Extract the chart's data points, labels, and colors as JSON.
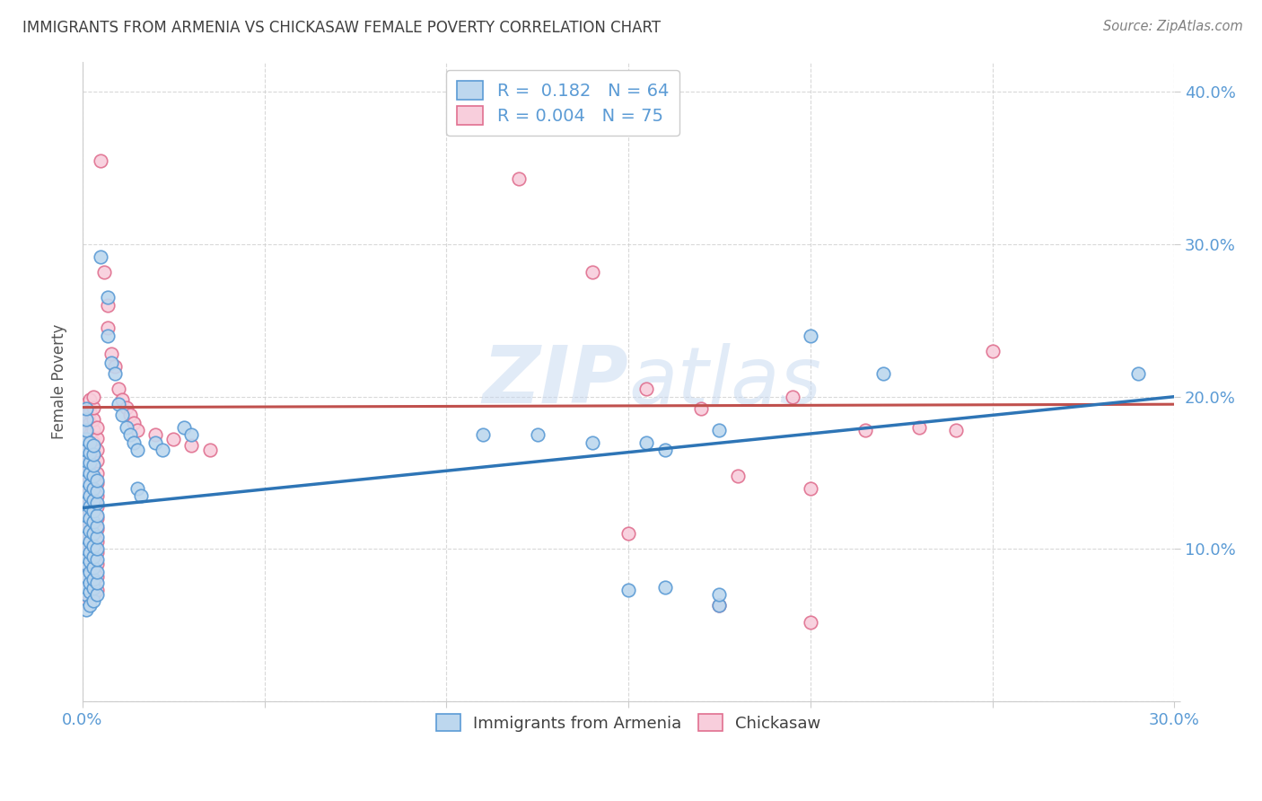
{
  "title": "IMMIGRANTS FROM ARMENIA VS CHICKASAW FEMALE POVERTY CORRELATION CHART",
  "source": "Source: ZipAtlas.com",
  "ylabel_label": "Female Poverty",
  "xlim": [
    0.0,
    0.3
  ],
  "ylim": [
    0.0,
    0.42
  ],
  "yticks": [
    0.0,
    0.1,
    0.2,
    0.3,
    0.4
  ],
  "xticks": [
    0.0,
    0.05,
    0.1,
    0.15,
    0.2,
    0.25,
    0.3
  ],
  "legend_label1": "Immigrants from Armenia",
  "legend_label2": "Chickasaw",
  "color_blue_face": "#bdd7ee",
  "color_blue_edge": "#5b9bd5",
  "color_pink_face": "#f8cedc",
  "color_pink_edge": "#e07090",
  "line_blue": "#2e75b6",
  "line_pink": "#c0504d",
  "watermark": "ZIPatlas",
  "axis_color": "#5b9bd5",
  "title_color": "#404040",
  "source_color": "#808080",
  "blue_scatter": [
    [
      0.001,
      0.06
    ],
    [
      0.001,
      0.07
    ],
    [
      0.001,
      0.075
    ],
    [
      0.001,
      0.082
    ],
    [
      0.001,
      0.09
    ],
    [
      0.001,
      0.095
    ],
    [
      0.001,
      0.1
    ],
    [
      0.001,
      0.108
    ],
    [
      0.001,
      0.115
    ],
    [
      0.001,
      0.122
    ],
    [
      0.001,
      0.13
    ],
    [
      0.001,
      0.138
    ],
    [
      0.001,
      0.145
    ],
    [
      0.001,
      0.152
    ],
    [
      0.001,
      0.158
    ],
    [
      0.001,
      0.165
    ],
    [
      0.001,
      0.172
    ],
    [
      0.001,
      0.178
    ],
    [
      0.001,
      0.185
    ],
    [
      0.001,
      0.192
    ],
    [
      0.002,
      0.063
    ],
    [
      0.002,
      0.072
    ],
    [
      0.002,
      0.078
    ],
    [
      0.002,
      0.085
    ],
    [
      0.002,
      0.092
    ],
    [
      0.002,
      0.098
    ],
    [
      0.002,
      0.105
    ],
    [
      0.002,
      0.112
    ],
    [
      0.002,
      0.12
    ],
    [
      0.002,
      0.128
    ],
    [
      0.002,
      0.135
    ],
    [
      0.002,
      0.142
    ],
    [
      0.002,
      0.15
    ],
    [
      0.002,
      0.157
    ],
    [
      0.002,
      0.163
    ],
    [
      0.002,
      0.17
    ],
    [
      0.003,
      0.066
    ],
    [
      0.003,
      0.074
    ],
    [
      0.003,
      0.08
    ],
    [
      0.003,
      0.088
    ],
    [
      0.003,
      0.095
    ],
    [
      0.003,
      0.102
    ],
    [
      0.003,
      0.11
    ],
    [
      0.003,
      0.118
    ],
    [
      0.003,
      0.125
    ],
    [
      0.003,
      0.132
    ],
    [
      0.003,
      0.14
    ],
    [
      0.003,
      0.148
    ],
    [
      0.003,
      0.155
    ],
    [
      0.003,
      0.162
    ],
    [
      0.003,
      0.168
    ],
    [
      0.004,
      0.07
    ],
    [
      0.004,
      0.078
    ],
    [
      0.004,
      0.085
    ],
    [
      0.004,
      0.093
    ],
    [
      0.004,
      0.1
    ],
    [
      0.004,
      0.108
    ],
    [
      0.004,
      0.115
    ],
    [
      0.004,
      0.122
    ],
    [
      0.004,
      0.13
    ],
    [
      0.004,
      0.138
    ],
    [
      0.004,
      0.145
    ],
    [
      0.005,
      0.292
    ],
    [
      0.007,
      0.265
    ],
    [
      0.007,
      0.24
    ],
    [
      0.008,
      0.222
    ],
    [
      0.009,
      0.215
    ],
    [
      0.01,
      0.195
    ],
    [
      0.011,
      0.188
    ],
    [
      0.012,
      0.18
    ],
    [
      0.013,
      0.175
    ],
    [
      0.014,
      0.17
    ],
    [
      0.015,
      0.165
    ],
    [
      0.015,
      0.14
    ],
    [
      0.016,
      0.135
    ],
    [
      0.02,
      0.17
    ],
    [
      0.022,
      0.165
    ],
    [
      0.028,
      0.18
    ],
    [
      0.03,
      0.175
    ],
    [
      0.11,
      0.175
    ],
    [
      0.125,
      0.175
    ],
    [
      0.14,
      0.17
    ],
    [
      0.155,
      0.17
    ],
    [
      0.16,
      0.165
    ],
    [
      0.175,
      0.178
    ],
    [
      0.22,
      0.215
    ],
    [
      0.29,
      0.215
    ],
    [
      0.15,
      0.073
    ],
    [
      0.175,
      0.063
    ],
    [
      0.16,
      0.075
    ],
    [
      0.175,
      0.07
    ],
    [
      0.2,
      0.24
    ]
  ],
  "pink_scatter": [
    [
      0.001,
      0.065
    ],
    [
      0.001,
      0.075
    ],
    [
      0.001,
      0.082
    ],
    [
      0.001,
      0.09
    ],
    [
      0.001,
      0.098
    ],
    [
      0.001,
      0.105
    ],
    [
      0.001,
      0.112
    ],
    [
      0.001,
      0.12
    ],
    [
      0.001,
      0.128
    ],
    [
      0.001,
      0.135
    ],
    [
      0.001,
      0.143
    ],
    [
      0.001,
      0.15
    ],
    [
      0.001,
      0.158
    ],
    [
      0.001,
      0.165
    ],
    [
      0.001,
      0.172
    ],
    [
      0.001,
      0.18
    ],
    [
      0.001,
      0.188
    ],
    [
      0.001,
      0.195
    ],
    [
      0.002,
      0.068
    ],
    [
      0.002,
      0.078
    ],
    [
      0.002,
      0.085
    ],
    [
      0.002,
      0.093
    ],
    [
      0.002,
      0.1
    ],
    [
      0.002,
      0.108
    ],
    [
      0.002,
      0.115
    ],
    [
      0.002,
      0.123
    ],
    [
      0.002,
      0.13
    ],
    [
      0.002,
      0.138
    ],
    [
      0.002,
      0.145
    ],
    [
      0.002,
      0.153
    ],
    [
      0.002,
      0.16
    ],
    [
      0.002,
      0.168
    ],
    [
      0.002,
      0.175
    ],
    [
      0.002,
      0.183
    ],
    [
      0.002,
      0.19
    ],
    [
      0.002,
      0.198
    ],
    [
      0.003,
      0.07
    ],
    [
      0.003,
      0.08
    ],
    [
      0.003,
      0.088
    ],
    [
      0.003,
      0.095
    ],
    [
      0.003,
      0.103
    ],
    [
      0.003,
      0.11
    ],
    [
      0.003,
      0.118
    ],
    [
      0.003,
      0.125
    ],
    [
      0.003,
      0.133
    ],
    [
      0.003,
      0.14
    ],
    [
      0.003,
      0.148
    ],
    [
      0.003,
      0.155
    ],
    [
      0.003,
      0.163
    ],
    [
      0.003,
      0.17
    ],
    [
      0.003,
      0.178
    ],
    [
      0.003,
      0.185
    ],
    [
      0.003,
      0.193
    ],
    [
      0.003,
      0.2
    ],
    [
      0.004,
      0.073
    ],
    [
      0.004,
      0.082
    ],
    [
      0.004,
      0.09
    ],
    [
      0.004,
      0.098
    ],
    [
      0.004,
      0.105
    ],
    [
      0.004,
      0.113
    ],
    [
      0.004,
      0.12
    ],
    [
      0.004,
      0.128
    ],
    [
      0.004,
      0.135
    ],
    [
      0.004,
      0.143
    ],
    [
      0.004,
      0.15
    ],
    [
      0.004,
      0.158
    ],
    [
      0.004,
      0.165
    ],
    [
      0.004,
      0.173
    ],
    [
      0.004,
      0.18
    ],
    [
      0.005,
      0.355
    ],
    [
      0.006,
      0.282
    ],
    [
      0.007,
      0.26
    ],
    [
      0.007,
      0.245
    ],
    [
      0.008,
      0.228
    ],
    [
      0.009,
      0.22
    ],
    [
      0.01,
      0.205
    ],
    [
      0.011,
      0.198
    ],
    [
      0.012,
      0.193
    ],
    [
      0.013,
      0.188
    ],
    [
      0.014,
      0.183
    ],
    [
      0.015,
      0.178
    ],
    [
      0.02,
      0.175
    ],
    [
      0.025,
      0.172
    ],
    [
      0.03,
      0.168
    ],
    [
      0.035,
      0.165
    ],
    [
      0.12,
      0.343
    ],
    [
      0.14,
      0.282
    ],
    [
      0.155,
      0.205
    ],
    [
      0.17,
      0.192
    ],
    [
      0.195,
      0.2
    ],
    [
      0.215,
      0.178
    ],
    [
      0.15,
      0.11
    ],
    [
      0.175,
      0.063
    ],
    [
      0.2,
      0.052
    ],
    [
      0.23,
      0.18
    ],
    [
      0.24,
      0.178
    ],
    [
      0.18,
      0.148
    ],
    [
      0.2,
      0.14
    ],
    [
      0.25,
      0.23
    ]
  ],
  "blue_line_x": [
    0.0,
    0.3
  ],
  "blue_line_y": [
    0.127,
    0.2
  ],
  "pink_line_x": [
    0.0,
    0.3
  ],
  "pink_line_y": [
    0.193,
    0.195
  ]
}
